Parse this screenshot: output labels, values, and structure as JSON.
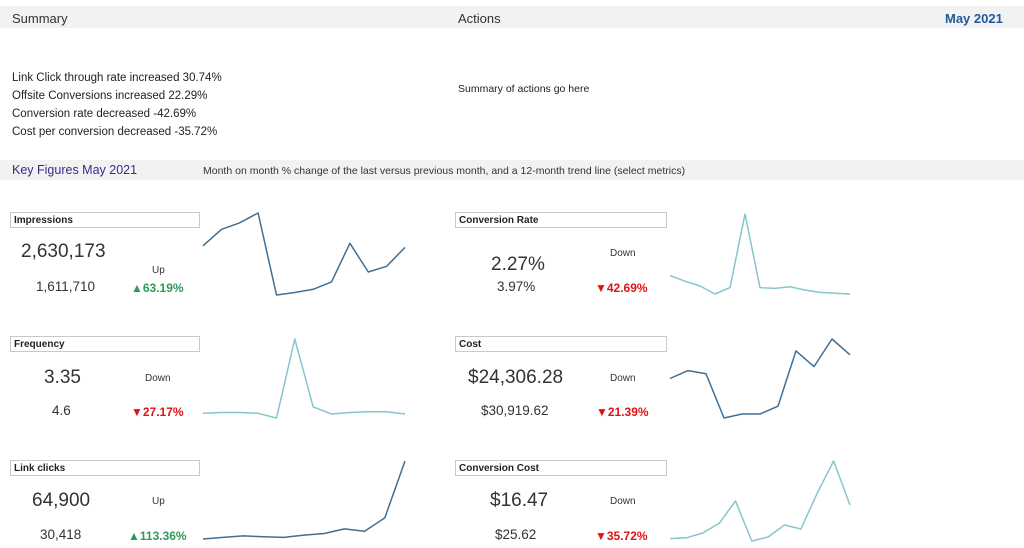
{
  "header": {
    "summary_title": "Summary",
    "actions_title": "Actions",
    "month": "May 2021"
  },
  "summary": {
    "lines": [
      "Link Click through rate increased 30.74%",
      "Offsite Conversions increased 22.29%",
      "Conversion rate decreased -42.69%",
      "Cost per conversion decreased -35.72%"
    ]
  },
  "actions": {
    "text": "Summary of actions go here"
  },
  "key_figures": {
    "title": "Key Figures May 2021",
    "subtitle": "Month on month % change of the last versus previous month, and a 12-month trend line (select metrics)"
  },
  "colors": {
    "dark_line": "#3f6f95",
    "light_line": "#86c6cc",
    "up": "#2e9a5a",
    "down": "#e01212",
    "accent": "#1f5a96"
  },
  "metrics": {
    "impressions": {
      "label": "Impressions",
      "current": "2,630,173",
      "previous": "1,611,710",
      "direction": "Up",
      "change": "▲63.19%",
      "trend": [
        60,
        80,
        88,
        100,
        0,
        3,
        7,
        16,
        63,
        28,
        35,
        58
      ]
    },
    "frequency": {
      "label": "Frequency",
      "current": "3.35",
      "direction": "Down",
      "previous": "4.6",
      "change": "▼27.17%",
      "trend": [
        6,
        7,
        7,
        6,
        0,
        100,
        14,
        5,
        7,
        8,
        8,
        5
      ]
    },
    "link_clicks": {
      "label": "Link clicks",
      "current": "64,900",
      "direction": "Up",
      "previous": "30,418",
      "change": "▲113.36%",
      "trend": [
        0,
        2,
        4,
        3,
        2,
        5,
        7,
        13,
        10,
        27,
        100
      ]
    },
    "conversion_rate": {
      "label": "Conversion Rate",
      "current": "2.27%",
      "direction": "Down",
      "previous": "3.97%",
      "change": "▼42.69%",
      "trend": [
        23,
        16,
        10,
        0,
        8,
        100,
        8,
        7,
        9,
        5,
        2,
        1,
        0
      ]
    },
    "cost": {
      "label": "Cost",
      "current": "$24,306.28",
      "direction": "Down",
      "previous": "$30,919.62",
      "change": "▼21.39%",
      "trend": [
        50,
        60,
        56,
        0,
        5,
        5,
        15,
        85,
        65,
        100,
        80
      ]
    },
    "conversion_cost": {
      "label": "Conversion Cost",
      "current": "$16.47",
      "direction": "Down",
      "previous": "$25.62",
      "change": "▼35.72%",
      "trend": [
        3,
        4,
        10,
        22,
        50,
        0,
        5,
        20,
        15,
        60,
        100,
        45
      ]
    }
  }
}
